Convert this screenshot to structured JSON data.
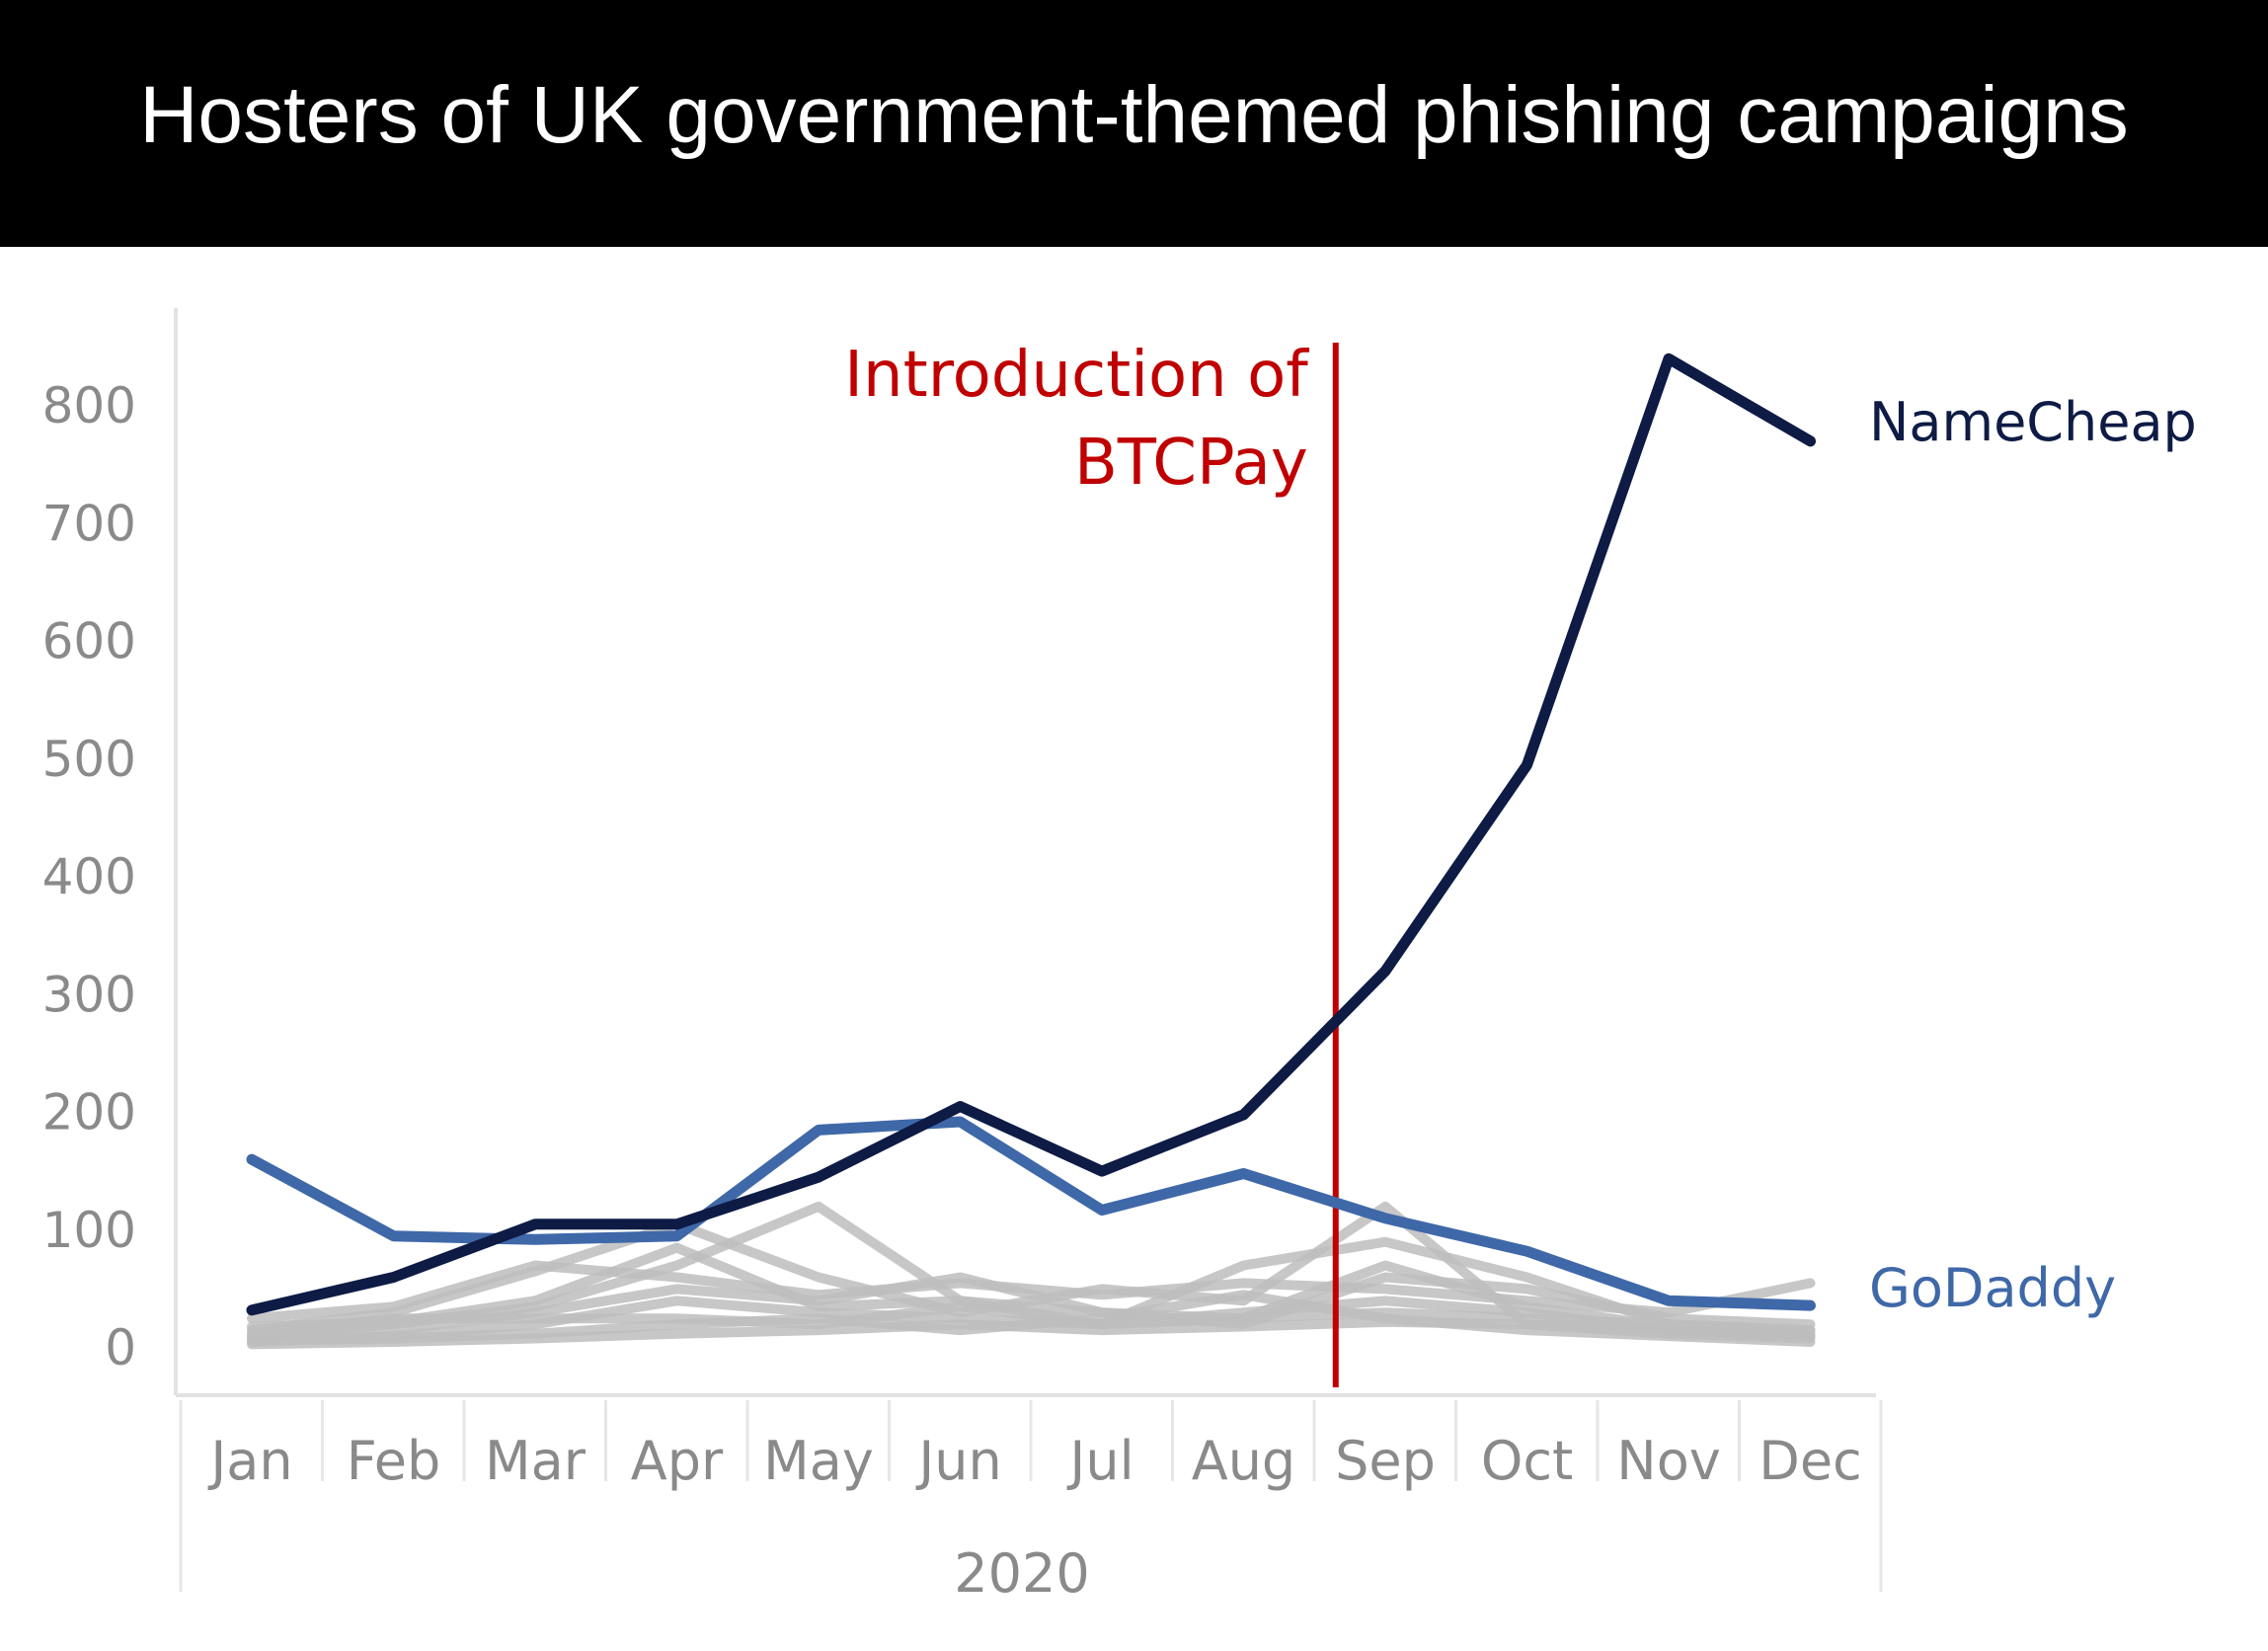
{
  "title": "Hosters of UK government-themed phishing campaigns",
  "annotation": {
    "line1": "Introduction of",
    "line2": "BTCPay",
    "color": "#c00000"
  },
  "chart_data": {
    "type": "line",
    "title": "Hosters of UK government-themed phishing campaigns",
    "xlabel": "2020",
    "ylabel": "",
    "x": [
      "Jan",
      "Feb",
      "Mar",
      "Apr",
      "May",
      "Jun",
      "Jul",
      "Aug",
      "Sep",
      "Oct",
      "Nov",
      "Dec"
    ],
    "ylim": [
      -20,
      860
    ],
    "yticks": [
      "0",
      "100",
      "200",
      "300",
      "400",
      "500",
      "600",
      "700",
      "800"
    ],
    "grid": false,
    "vline": {
      "at_month_index": 7.65,
      "label": "Introduction of BTCPay",
      "color": "#c00000"
    },
    "series": [
      {
        "name": "NameCheap",
        "color": "#0d1b45",
        "values": [
          32,
          60,
          105,
          105,
          145,
          205,
          150,
          198,
          320,
          495,
          840,
          770
        ],
        "highlight": true
      },
      {
        "name": "GoDaddy",
        "color": "#3f68a8",
        "values": [
          160,
          95,
          92,
          95,
          185,
          192,
          117,
          148,
          110,
          82,
          40,
          36
        ],
        "highlight": true
      },
      {
        "name": "",
        "color": "#bdbdbd",
        "values": [
          15,
          30,
          65,
          105,
          60,
          30,
          50,
          40,
          120,
          20,
          15,
          10
        ]
      },
      {
        "name": "",
        "color": "#bdbdbd",
        "values": [
          10,
          20,
          35,
          70,
          120,
          40,
          20,
          70,
          90,
          60,
          20,
          15
        ]
      },
      {
        "name": "",
        "color": "#bdbdbd",
        "values": [
          25,
          35,
          70,
          60,
          45,
          55,
          45,
          55,
          50,
          40,
          30,
          55
        ]
      },
      {
        "name": "",
        "color": "#bdbdbd",
        "values": [
          8,
          15,
          30,
          50,
          40,
          60,
          30,
          20,
          60,
          50,
          25,
          20
        ]
      },
      {
        "name": "",
        "color": "#bdbdbd",
        "values": [
          5,
          10,
          20,
          40,
          30,
          25,
          20,
          30,
          40,
          30,
          15,
          10
        ]
      },
      {
        "name": "",
        "color": "#bdbdbd",
        "values": [
          12,
          25,
          25,
          25,
          20,
          35,
          20,
          25,
          30,
          25,
          20,
          15
        ]
      },
      {
        "name": "",
        "color": "#bdbdbd",
        "values": [
          3,
          5,
          8,
          12,
          15,
          20,
          15,
          18,
          22,
          20,
          12,
          8
        ]
      },
      {
        "name": "",
        "color": "#bdbdbd",
        "values": [
          18,
          22,
          40,
          85,
          35,
          40,
          30,
          25,
          70,
          35,
          18,
          12
        ]
      },
      {
        "name": "",
        "color": "#bdbdbd",
        "values": [
          6,
          8,
          12,
          20,
          25,
          15,
          25,
          45,
          25,
          15,
          10,
          5
        ]
      }
    ]
  }
}
